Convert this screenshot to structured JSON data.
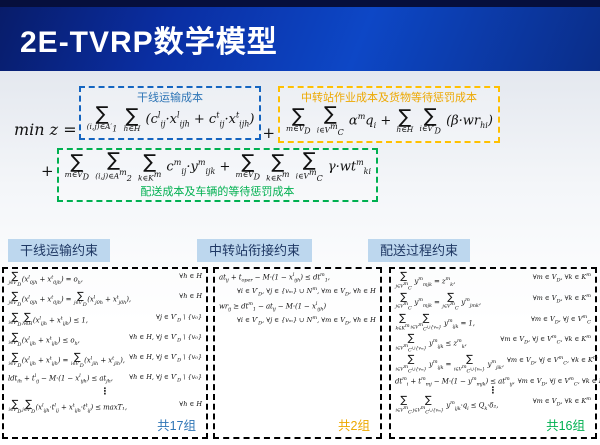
{
  "slide": {
    "title": "2E-TVRP数学模型"
  },
  "objective": {
    "prefix": "min z =",
    "plus": "+",
    "trunk": {
      "label": "干线运输成本",
      "formula": "∑{(i,j)∈A′_{1}} ∑{h∈H} (c^{l}_{ij}·x^{l}_{ijh} + c^{t}_{ij}·x^{t}_{ijh})"
    },
    "transfer": {
      "label": "中转站作业成本及货物等待惩罚成本",
      "formula": "∑{m∈V_{D}} ∑{i∈V^{m}_{C}} α^{m}q_{i} + ∑{h∈H} ∑{i∈V′_{D}} (β·wr_{hi})"
    },
    "delivery": {
      "label": "配送成本及车辆的等待惩罚成本",
      "formula": "∑{m∈V_{D}} ∑{(i,j)∈A^{m}_{2}} ∑{k∈K^{m}} c^{m}_{ij}·y^{m}_{ijk} + ∑{m∈V_{D}} ∑{k∈K^{m}} ∑{i∈V^{m}_{C}} γ·wt^{m}_{ki}"
    }
  },
  "sections": [
    {
      "title": "干线运输约束",
      "count_label": "共17组",
      "color": "#1565c0",
      "rows_align": "spread",
      "rows": [
        {
          "f": "∑{j∈V′_{D}}(x^{l}_{0jh} + x^{t}_{0jh}) = o_{h},",
          "q": "∀h ∈ H"
        },
        {
          "f": "∑{j∈V′_{D}}(x^{l}_{0jh} + x^{t}_{0jh}) = ∑{j∈V′_{D}}(x^{l}_{j0h} + x^{t}_{j0h}),",
          "q": "∀h ∈ H"
        },
        {
          "f": "∑{i∈V′_{D}}∑{h∈H}(x^{l}_{ijh} + x^{t}_{ijh}) ≤ 1,",
          "q": "∀j ∈ V′_{D} \\ {v₀}"
        },
        {
          "f": "∑{i∈V′_{D}}(x^{l}_{ijh} + x^{t}_{ijh}) ≤ o_{h},",
          "q": "∀h ∈ H, ∀j ∈ V′_{D} \\ {v₀}"
        },
        {
          "f": "∑{i∈V′_{D}}(x^{l}_{ijh} + x^{t}_{ijh}) = ∑{i∈V′_{D}}(x^{l}_{jih} + x^{t}_{jih}),",
          "q": "∀h ∈ H, ∀j ∈ V′_{D} \\ {v₀}"
        },
        {
          "f": "ldt_{ih} + t^{l}_{ij} − M·(1 − x^{l}_{ijh}) ≤ at_{jh},",
          "q": "∀h ∈ H, ∀j ∈ V′_{D} \\ {v₀}"
        },
        {
          "dots": "⋮"
        },
        {
          "f": "∑{i∈V′_{D}}∑{j∈V′_{D}}(x^{l}_{ijh}·t^{l}_{ij} + x^{t}_{ijh}·t^{t}_{ij}) ≤ maxT₁,",
          "q": "∀h ∈ H"
        }
      ]
    },
    {
      "title": "中转站衔接约束",
      "count_label": "共2组",
      "color": "#ffc000",
      "rows_align": "top",
      "rows": [
        {
          "f": "at_{ij} + t_{oper} − M·(1 − x^{l}_{ijh}) ≤ dt^{m}_{1},",
          "q": "∀i ∈ V′_{D}, ∀j ∈ {vₘ} ∪ N^{m}, ∀m ∈ V_{D}, ∀h ∈ H",
          "stack": true
        },
        {
          "f": "wr_{ij} ≥ dt^{m}_{1} − at_{ij} − M·(1 − x^{l}_{ijh})",
          "q": "∀i ∈ V′_{D}, ∀j ∈ {vₘ} ∪ N^{m}, ∀m ∈ V_{D}, ∀h ∈ H",
          "stack": true
        }
      ]
    },
    {
      "title": "配送过程约束",
      "count_label": "共16组",
      "color": "#00b050",
      "rows_align": "spread",
      "rows": [
        {
          "f": "∑{j∈V^{m}_{C}} y^{m}_{mjk} = z^{m}_{k},",
          "q": "∀m ∈ V_{D}, ∀k ∈ K^{m}"
        },
        {
          "f": "∑{j∈V^{m}_{C}} y^{m}_{mjk} = ∑{j∈V^{m}_{C}} y^{m}_{jmk},",
          "q": "∀m ∈ V_{D}, ∀k ∈ K^{m}"
        },
        {
          "f": "∑{k∈K^{m}}∑{i∈V^{m}_{C}∪{vₘ}} y^{m}_{ijk} = 1,",
          "q": "∀m ∈ V_{D}, ∀j ∈ V^{m}_{C}"
        },
        {
          "f": "∑{i∈V^{m}_{C}∪{vₘ}} y^{m}_{ijk} ≤ z^{m}_{k},",
          "q": "∀m ∈ V_{D}, ∀j ∈ V^{m}_{C}, ∀k ∈ K^{m}"
        },
        {
          "f": "∑{i∈V^{m}_{C}∪{vₘ}} y^{m}_{ijk} = ∑{i∈V^{m}_{C}∪{vₘ}} y^{m}_{jik},",
          "q": "∀m ∈ V_{D}, ∀j ∈ V^{m}_{C}, ∀k ∈ K^{m}"
        },
        {
          "f": "dt^{m}_{i} + t^{m}_{mj} − M·(1 − y^{m}_{mjk}) ≤ at^{m}_{ij},",
          "q": "∀m ∈ V_{D}, ∀j ∈ V^{m}_{C}, ∀k ∈ K^{m}"
        },
        {
          "dots": "⋮"
        },
        {
          "f": "∑{i∈V^{m}_{C}}∑{j∈V^{m}_{C}∪{vₘ}} y^{m}_{ijk}·q_{i} ≤ Q_{k}·δ₂,",
          "q": "∀m ∈ V_{D}, ∀k ∈ K^{m}"
        }
      ]
    }
  ],
  "colors": {
    "header_gradient_dark": "#081c69",
    "header_gradient_bright": "#0d47c6",
    "header_top_strip": "#060f3c",
    "trunk_blue": "#1565c0",
    "transfer_orange": "#ffc000",
    "delivery_green": "#00b050",
    "section_header_bg": "#bdd7ee",
    "section_header_text": "#1f3864",
    "blue_label_text": "#2e75b6",
    "title_text": "#ffffff"
  }
}
